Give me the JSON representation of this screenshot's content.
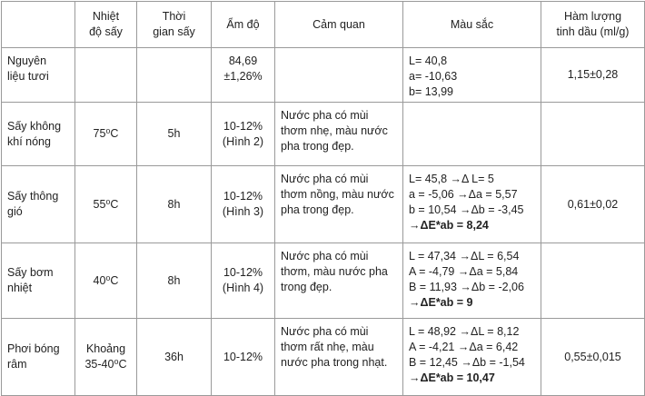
{
  "table": {
    "header": [
      [
        "Nhiệt",
        "độ sấy"
      ],
      [
        "Thời",
        "gian sấy"
      ],
      [
        "Ẩm độ"
      ],
      [
        "Cảm quan"
      ],
      [
        "Màu sắc"
      ],
      [
        "Hàm lượng",
        "tinh dầu (ml/g)"
      ]
    ],
    "rows": [
      {
        "name": [
          "Nguyên",
          "liệu tươi"
        ],
        "moisture": [
          "84,69",
          "±1,26%"
        ],
        "color": [
          "L= 40,8",
          "a= -10,63",
          "b= 13,99"
        ],
        "oil": [
          "1,15±0,28"
        ]
      },
      {
        "name": [
          "Sấy không",
          "khí nóng"
        ],
        "temp": [
          "75⁰C"
        ],
        "time": [
          "5h"
        ],
        "moisture": [
          "10-12%",
          "(Hình 2)"
        ],
        "sensory": [
          "Nước pha có mùi",
          "thơm nhẹ, màu nước",
          "pha trong đẹp."
        ]
      },
      {
        "name": [
          "Sấy thông",
          "gió"
        ],
        "temp": [
          "55⁰C"
        ],
        "time": [
          "8h"
        ],
        "moisture": [
          "10-12%",
          "(Hình 3)"
        ],
        "sensory": [
          "Nước pha có mùi",
          "thơm nồng, màu nước",
          "pha trong đẹp."
        ],
        "color": [
          "L= 45,8 →Δ L= 5",
          "a = -5,06 →Δa = 5,57",
          "b = 10,54 →Δb = -3,45",
          "→ΔE*ab = 8,24"
        ],
        "oil": [
          "0,61±0,02"
        ]
      },
      {
        "name": [
          "Sấy bơm",
          "nhiệt"
        ],
        "temp": [
          "40⁰C"
        ],
        "time": [
          "8h"
        ],
        "moisture": [
          "10-12%",
          "(Hình 4)"
        ],
        "sensory": [
          "Nước pha có mùi",
          "thơm, màu nước pha",
          "trong đẹp."
        ],
        "color": [
          "L = 47,34 →ΔL = 6,54",
          "A = -4,79 →Δa =  5,84",
          "B = 11,93 →Δb = -2,06",
          "→ΔE*ab = 9"
        ]
      },
      {
        "name": [
          "Phơi bóng",
          "râm"
        ],
        "temp": [
          "Khoảng",
          "35-40⁰C"
        ],
        "time": [
          "36h"
        ],
        "moisture": [
          "10-12%"
        ],
        "sensory": [
          "Nước pha có mùi",
          "thơm rất nhẹ, màu",
          "nước pha trong nhạt."
        ],
        "color": [
          "L = 48,92 →ΔL = 8,12",
          "A = -4,21 →Δa = 6,42",
          "B = 12,45 →Δb = -1,54",
          "→ΔE*ab = 10,47"
        ],
        "oil": [
          "0,55±0,015"
        ]
      }
    ]
  }
}
